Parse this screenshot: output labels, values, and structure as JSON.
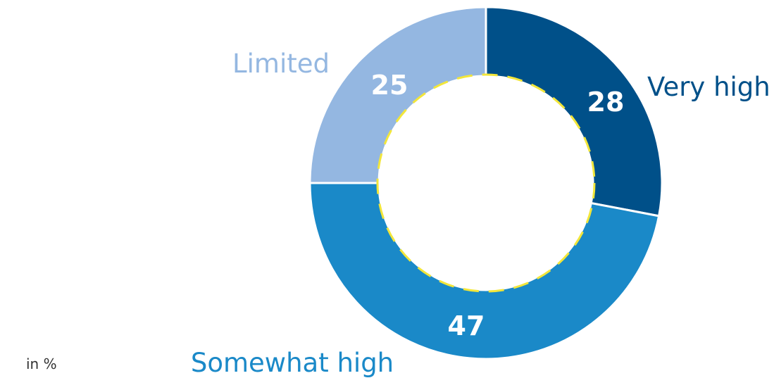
{
  "chart_data": {
    "type": "pie",
    "variant": "donut",
    "unit_note": "in %",
    "slices": [
      {
        "name": "Very high",
        "value": 28,
        "color": "#005089"
      },
      {
        "name": "Somewhat high",
        "value": 47,
        "color": "#1a89c8"
      },
      {
        "name": "Limited",
        "value": 25,
        "color": "#94b7e1"
      }
    ],
    "start_angle_deg": 0,
    "direction": "clockwise",
    "inner_dashed_ring": {
      "color": "#f2e63a",
      "style": "dashed"
    },
    "legend": "none",
    "labels_outside": true,
    "value_labels_on_slices": true
  }
}
